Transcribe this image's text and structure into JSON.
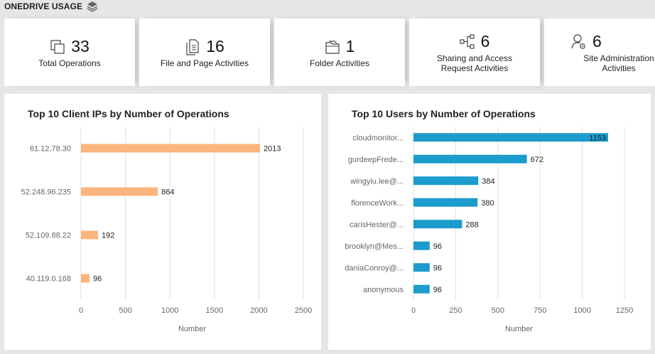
{
  "header": {
    "title": "ONEDRIVE USAGE",
    "icon": "layers-icon"
  },
  "cards": [
    {
      "value": "33",
      "label": "Total Operations",
      "icon": "copy-icon"
    },
    {
      "value": "16",
      "label": "File and Page Activities",
      "icon": "file-icon"
    },
    {
      "value": "1",
      "label": "Folder Activities",
      "icon": "folder-icon"
    },
    {
      "value": "6",
      "label": "Sharing and Access Request Activities",
      "icon": "share-icon"
    },
    {
      "value": "6",
      "label": "Site Administration Activities",
      "icon": "user-settings-icon"
    }
  ],
  "colors": {
    "orange": "#fcb47d",
    "blue": "#1b9ccc",
    "grid": "#e0e0e0"
  },
  "chart_data": [
    {
      "type": "bar",
      "orientation": "horizontal",
      "title": "Top 10 Client IPs by Number of Operations",
      "xlabel": "Number",
      "ylabel": "",
      "categories": [
        "61.12.78.30",
        "52.248.96.235",
        "52.109.88.22",
        "40.119.0.168"
      ],
      "values": [
        2013,
        864,
        192,
        96
      ],
      "xlim": [
        0,
        2500
      ],
      "ticks": [
        "0",
        "500",
        "1000",
        "1500",
        "2000",
        "2500"
      ],
      "grid": true
    },
    {
      "type": "bar",
      "orientation": "horizontal",
      "title": "Top 10 Users by Number of Operations",
      "xlabel": "Number",
      "ylabel": "",
      "categories": [
        "cloudmonitor...",
        "gurdeepFrede...",
        "wingyiu.lee@...",
        "florenceWork...",
        "carisHester@...",
        "brooklyn@Mes...",
        "daniaConroy@...",
        "anonymous"
      ],
      "values": [
        1153,
        672,
        384,
        380,
        288,
        96,
        96,
        96
      ],
      "xlim": [
        0,
        1250
      ],
      "ticks": [
        "0",
        "250",
        "500",
        "750",
        "1000",
        "1250"
      ],
      "grid": true
    }
  ]
}
